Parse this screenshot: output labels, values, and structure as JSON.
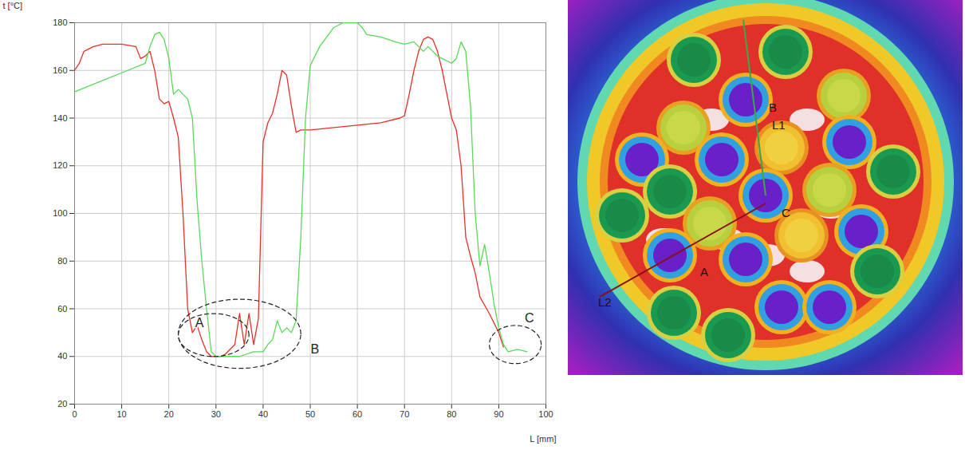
{
  "chart_data": {
    "type": "line",
    "x_label": "L [mm]",
    "y_label": "t [°C]",
    "xlim": [
      0,
      100
    ],
    "xticks": [
      0,
      10,
      20,
      30,
      40,
      50,
      60,
      70,
      80,
      90,
      100
    ],
    "ylim": [
      20,
      180
    ],
    "yticks": [
      20,
      40,
      60,
      80,
      100,
      120,
      140,
      160,
      180
    ],
    "grid": true,
    "series": [
      {
        "color": "#e8302a",
        "x": [
          0,
          1,
          2,
          4,
          6,
          10,
          13,
          14,
          15,
          16,
          17,
          18,
          19,
          20,
          21,
          22,
          23,
          24,
          25,
          26,
          27,
          28,
          29,
          30,
          31,
          32,
          33,
          34,
          35,
          36,
          37,
          38,
          39,
          40,
          41,
          42,
          43,
          44,
          45,
          46,
          47,
          48,
          50,
          55,
          60,
          65,
          69,
          70,
          71,
          72,
          73,
          74,
          75,
          76,
          77,
          78,
          79,
          80,
          81,
          82,
          83,
          84,
          85,
          86,
          88,
          90,
          91
        ],
        "values": [
          160,
          163,
          168,
          170,
          171,
          171,
          170,
          165,
          166,
          168,
          160,
          148,
          146,
          147,
          140,
          132,
          100,
          60,
          50,
          53,
          47,
          42,
          40,
          40,
          40,
          41,
          43,
          45,
          58,
          45,
          58,
          45,
          56,
          130,
          138,
          142,
          150,
          160,
          158,
          145,
          134,
          135,
          135,
          136,
          137,
          138,
          140,
          141,
          150,
          160,
          168,
          173,
          174,
          173,
          168,
          160,
          150,
          140,
          135,
          120,
          90,
          82,
          75,
          65,
          58,
          50,
          44
        ]
      },
      {
        "color": "#5ad85a",
        "x": [
          0,
          5,
          10,
          15,
          16,
          17,
          18,
          19,
          20,
          21,
          22,
          23,
          24,
          25,
          26,
          27,
          28,
          29,
          30,
          32,
          35,
          38,
          40,
          41,
          42,
          43,
          44,
          45,
          46,
          47,
          48,
          49,
          50,
          52,
          55,
          57,
          60,
          61,
          62,
          65,
          68,
          70,
          72,
          74,
          75,
          77,
          78,
          80,
          81,
          82,
          83,
          84,
          85,
          86,
          87,
          88,
          89,
          90,
          91,
          92,
          94,
          96
        ],
        "values": [
          151,
          155,
          159,
          163,
          170,
          175,
          176,
          173,
          165,
          150,
          152,
          150,
          148,
          140,
          105,
          80,
          60,
          42,
          40,
          40,
          40,
          42,
          42,
          45,
          47,
          55,
          50,
          52,
          50,
          55,
          90,
          140,
          162,
          170,
          178,
          180,
          180,
          178,
          175,
          174,
          172,
          171,
          172,
          168,
          170,
          166,
          165,
          163,
          165,
          172,
          168,
          145,
          100,
          78,
          87,
          75,
          62,
          52,
          45,
          42,
          43,
          42
        ]
      }
    ],
    "annotations": [
      {
        "text": "A",
        "x": 26.5,
        "y": 54,
        "ellipse": {
          "cx": 29.5,
          "cy": 49,
          "rx": 7.5,
          "ry": 9
        }
      },
      {
        "text": "B",
        "x": 51,
        "y": 43,
        "ellipse": {
          "cx": 35,
          "cy": 49.5,
          "rx": 13,
          "ry": 14.5
        }
      },
      {
        "text": "C",
        "x": 96.5,
        "y": 56,
        "ellipse": {
          "cx": 93.5,
          "cy": 45,
          "rx": 5.5,
          "ry": 8
        }
      }
    ]
  },
  "thermal_image": {
    "labels": [
      "B",
      "L1",
      "C",
      "A",
      "L2"
    ]
  }
}
